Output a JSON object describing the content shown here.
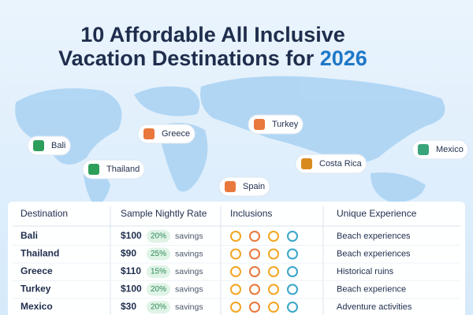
{
  "header": {
    "title_line1": "10 Affordable All Inclusive",
    "title_line2": "Vacation Destinations for",
    "title_year": "2026"
  },
  "map_pins": [
    "Bali",
    "Thailand",
    "Greece",
    "Turkey",
    "Costa Rica",
    "Spain",
    "Mexico"
  ],
  "table": {
    "headers": [
      "Destination",
      "Sample Nightly Rate",
      "Inclusions",
      "Unique Experience"
    ],
    "rows": [
      {
        "destination": "Bali",
        "rate": "$100",
        "discount": "20%",
        "savings": "savings",
        "experience": "Beach experiences"
      },
      {
        "destination": "Thailand",
        "rate": "$90",
        "discount": "25%",
        "savings": "savings",
        "experience": "Beach experiences"
      },
      {
        "destination": "Greece",
        "rate": "$110",
        "discount": "15%",
        "savings": "savings",
        "experience": "Historical ruins"
      },
      {
        "destination": "Turkey",
        "rate": "$100",
        "discount": "20%",
        "savings": "savings",
        "experience": "Beach experience"
      },
      {
        "destination": "Mexico",
        "rate": "$30",
        "discount": "20%",
        "savings": "savings",
        "experience": "Adventure activities"
      }
    ]
  }
}
